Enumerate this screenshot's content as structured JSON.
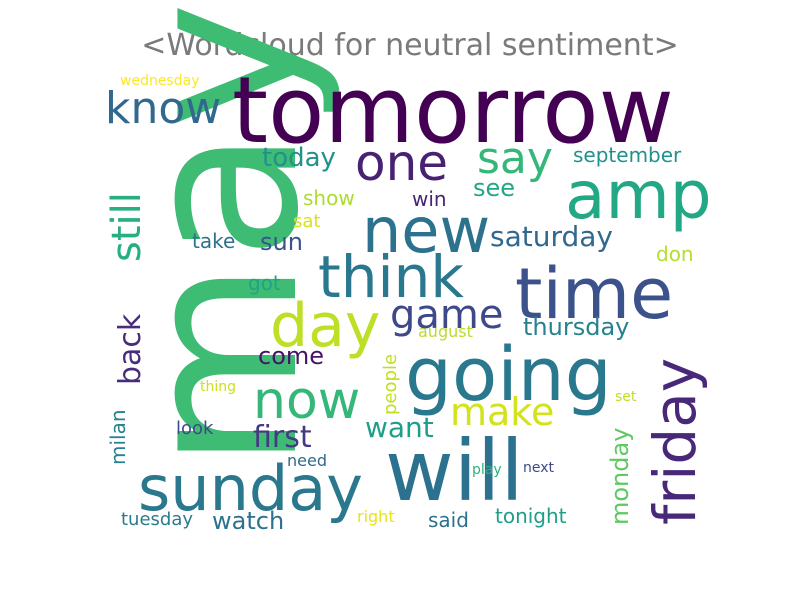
{
  "chart_data": {
    "type": "wordcloud",
    "title": "<Wordcloud for neutral sentiment>",
    "colormap": "viridis",
    "words": [
      {
        "text": "may",
        "color": "#3fbc73"
      },
      {
        "text": "tomorrow",
        "color": "#440154"
      },
      {
        "text": "will",
        "color": "#2c728e"
      },
      {
        "text": "going",
        "color": "#2a788e"
      },
      {
        "text": "time",
        "color": "#3b528b"
      },
      {
        "text": "sunday",
        "color": "#2a788e"
      },
      {
        "text": "amp",
        "color": "#22a884"
      },
      {
        "text": "new",
        "color": "#2c728e"
      },
      {
        "text": "friday",
        "color": "#482878"
      },
      {
        "text": "think",
        "color": "#2a788e"
      },
      {
        "text": "day",
        "color": "#bddf26"
      },
      {
        "text": "one",
        "color": "#482173"
      },
      {
        "text": "now",
        "color": "#35b779"
      },
      {
        "text": "know",
        "color": "#31688e"
      },
      {
        "text": "say",
        "color": "#35b779"
      },
      {
        "text": "make",
        "color": "#d2e21b"
      },
      {
        "text": "game",
        "color": "#3e4989"
      },
      {
        "text": "still",
        "color": "#29af7f"
      },
      {
        "text": "back",
        "color": "#472d7b"
      },
      {
        "text": "first",
        "color": "#443a83"
      },
      {
        "text": "want",
        "color": "#1f9e89"
      },
      {
        "text": "saturday",
        "color": "#31688e"
      },
      {
        "text": "today",
        "color": "#21918c"
      },
      {
        "text": "thursday",
        "color": "#26828e"
      },
      {
        "text": "come",
        "color": "#471365"
      },
      {
        "text": "see",
        "color": "#22a884"
      },
      {
        "text": "monday",
        "color": "#5ec962"
      },
      {
        "text": "watch",
        "color": "#2c728e"
      },
      {
        "text": "sun",
        "color": "#3b528b"
      },
      {
        "text": "september",
        "color": "#21918c"
      },
      {
        "text": "milan",
        "color": "#26828e"
      },
      {
        "text": "tonight",
        "color": "#1f9e89"
      },
      {
        "text": "show",
        "color": "#aadc32"
      },
      {
        "text": "said",
        "color": "#2c728e"
      },
      {
        "text": "win",
        "color": "#482475"
      },
      {
        "text": "got",
        "color": "#20a386"
      },
      {
        "text": "take",
        "color": "#2c728e"
      },
      {
        "text": "don",
        "color": "#b5de2b"
      },
      {
        "text": "tuesday",
        "color": "#287c8e"
      },
      {
        "text": "look",
        "color": "#3e4989"
      },
      {
        "text": "people",
        "color": "#c2df23"
      },
      {
        "text": "sat",
        "color": "#d8e219"
      },
      {
        "text": "need",
        "color": "#31688e"
      },
      {
        "text": "august",
        "color": "#b8de29"
      },
      {
        "text": "right",
        "color": "#e7e419"
      },
      {
        "text": "next",
        "color": "#3e4989"
      },
      {
        "text": "play",
        "color": "#2db27d"
      },
      {
        "text": "thing",
        "color": "#cae11f"
      },
      {
        "text": "set",
        "color": "#bddf26"
      },
      {
        "text": "wednesday",
        "color": "#fde725"
      }
    ]
  }
}
